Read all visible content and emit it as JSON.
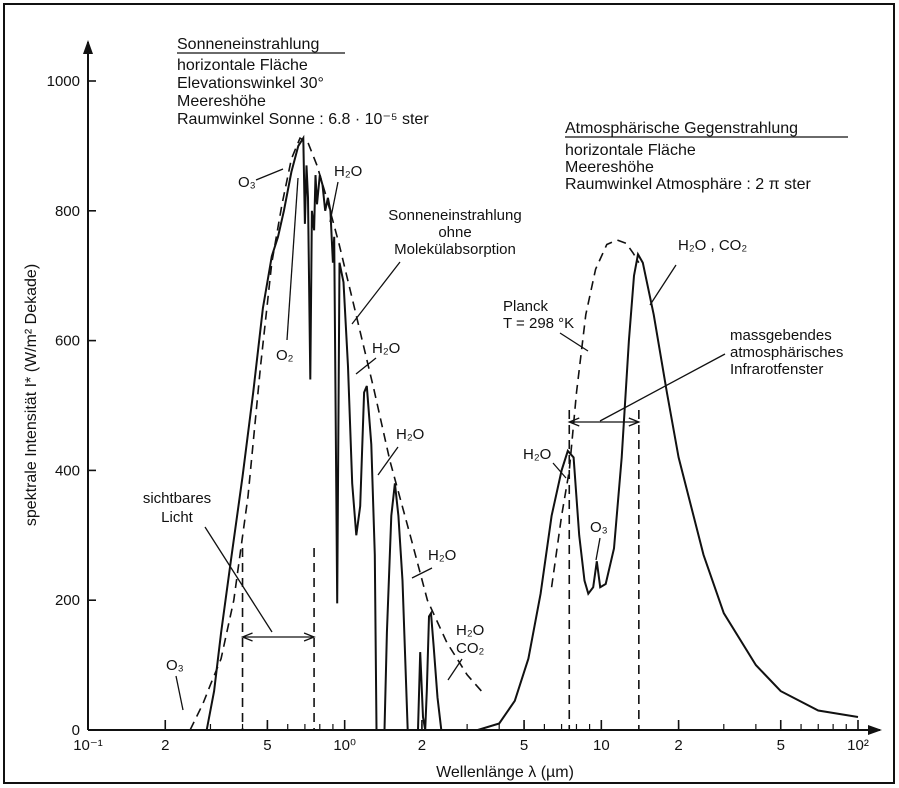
{
  "chart_data": {
    "type": "line",
    "x_scale": "log",
    "xlim": [
      0.1,
      100
    ],
    "ylim": [
      0,
      1000
    ],
    "xlabel": "Wellenlänge λ  (µm)",
    "ylabel": "spektrale Intensität  I* (W/m² Dekade)",
    "x_ticks": [
      {
        "x": 0.1,
        "label": "10⁻¹"
      },
      {
        "x": 0.2,
        "label": "2"
      },
      {
        "x": 0.5,
        "label": "5"
      },
      {
        "x": 1,
        "label": "10⁰"
      },
      {
        "x": 2,
        "label": "2"
      },
      {
        "x": 5,
        "label": "5"
      },
      {
        "x": 10,
        "label": "10"
      },
      {
        "x": 20,
        "label": "2"
      },
      {
        "x": 50,
        "label": "5"
      },
      {
        "x": 100,
        "label": "10²"
      }
    ],
    "y_ticks": [
      0,
      200,
      400,
      600,
      800,
      1000
    ],
    "series": [
      {
        "key": "solar_measured",
        "style": "solid",
        "points": [
          [
            0.29,
            0
          ],
          [
            0.31,
            60
          ],
          [
            0.33,
            150
          ],
          [
            0.36,
            260
          ],
          [
            0.4,
            390
          ],
          [
            0.44,
            520
          ],
          [
            0.48,
            650
          ],
          [
            0.52,
            730
          ],
          [
            0.55,
            760
          ],
          [
            0.58,
            800
          ],
          [
            0.62,
            860
          ],
          [
            0.66,
            900
          ],
          [
            0.69,
            912
          ],
          [
            0.7,
            780
          ],
          [
            0.71,
            870
          ],
          [
            0.72,
            820
          ],
          [
            0.735,
            540
          ],
          [
            0.745,
            800
          ],
          [
            0.76,
            770
          ],
          [
            0.77,
            855
          ],
          [
            0.78,
            810
          ],
          [
            0.8,
            855
          ],
          [
            0.82,
            840
          ],
          [
            0.84,
            800
          ],
          [
            0.86,
            820
          ],
          [
            0.88,
            800
          ],
          [
            0.9,
            720
          ],
          [
            0.91,
            760
          ],
          [
            0.935,
            195
          ],
          [
            0.955,
            720
          ],
          [
            0.99,
            690
          ],
          [
            1.03,
            560
          ],
          [
            1.07,
            380
          ],
          [
            1.11,
            300
          ],
          [
            1.15,
            345
          ],
          [
            1.19,
            520
          ],
          [
            1.22,
            530
          ],
          [
            1.27,
            440
          ],
          [
            1.31,
            270
          ],
          [
            1.33,
            0
          ],
          [
            1.43,
            0
          ],
          [
            1.46,
            150
          ],
          [
            1.52,
            330
          ],
          [
            1.57,
            380
          ],
          [
            1.62,
            330
          ],
          [
            1.68,
            230
          ],
          [
            1.76,
            0
          ],
          [
            1.93,
            0
          ],
          [
            1.97,
            120
          ],
          [
            2.02,
            20
          ],
          [
            2.06,
            0
          ],
          [
            2.09,
            60
          ],
          [
            2.13,
            175
          ],
          [
            2.17,
            180
          ],
          [
            2.22,
            130
          ],
          [
            2.3,
            50
          ],
          [
            2.38,
            0
          ],
          [
            2.5,
            0
          ],
          [
            3.3,
            0
          ]
        ]
      },
      {
        "key": "solar_no_absorption",
        "style": "dashed",
        "points": [
          [
            0.25,
            0
          ],
          [
            0.28,
            40
          ],
          [
            0.3,
            70
          ],
          [
            0.33,
            110
          ],
          [
            0.37,
            200
          ],
          [
            0.42,
            360
          ],
          [
            0.47,
            560
          ],
          [
            0.52,
            720
          ],
          [
            0.57,
            810
          ],
          [
            0.62,
            880
          ],
          [
            0.67,
            912
          ],
          [
            0.72,
            905
          ],
          [
            0.78,
            870
          ],
          [
            0.85,
            820
          ],
          [
            0.95,
            750
          ],
          [
            1.1,
            645
          ],
          [
            1.3,
            525
          ],
          [
            1.5,
            415
          ],
          [
            1.8,
            300
          ],
          [
            2.1,
            200
          ],
          [
            2.5,
            135
          ],
          [
            3.0,
            85
          ],
          [
            3.5,
            55
          ]
        ]
      },
      {
        "key": "planck_298K",
        "style": "dashed",
        "points": [
          [
            6.4,
            220
          ],
          [
            7.0,
            330
          ],
          [
            7.5,
            400
          ],
          [
            8.0,
            520
          ],
          [
            8.7,
            640
          ],
          [
            9.5,
            710
          ],
          [
            10.5,
            748
          ],
          [
            11.5,
            755
          ],
          [
            12.5,
            750
          ],
          [
            13.3,
            735
          ],
          [
            14.0,
            720
          ]
        ]
      },
      {
        "key": "atmospheric_measured",
        "style": "solid",
        "points": [
          [
            3.3,
            0
          ],
          [
            4.0,
            10
          ],
          [
            4.6,
            45
          ],
          [
            5.2,
            110
          ],
          [
            5.8,
            210
          ],
          [
            6.4,
            330
          ],
          [
            7.0,
            400
          ],
          [
            7.4,
            430
          ],
          [
            7.8,
            420
          ],
          [
            8.2,
            300
          ],
          [
            8.6,
            230
          ],
          [
            8.9,
            210
          ],
          [
            9.3,
            220
          ],
          [
            9.6,
            260
          ],
          [
            9.9,
            220
          ],
          [
            10.4,
            225
          ],
          [
            11.2,
            280
          ],
          [
            12.0,
            420
          ],
          [
            12.8,
            600
          ],
          [
            13.4,
            700
          ],
          [
            13.9,
            733
          ],
          [
            14.5,
            720
          ],
          [
            16,
            640
          ],
          [
            18,
            520
          ],
          [
            20,
            420
          ],
          [
            25,
            270
          ],
          [
            30,
            180
          ],
          [
            40,
            100
          ],
          [
            50,
            60
          ],
          [
            70,
            30
          ],
          [
            100,
            20
          ]
        ]
      }
    ],
    "annotations": {
      "solar_title": "Sonneneinstrahlung",
      "solar_lines": [
        "horizontale Fläche",
        "Elevationswinkel  30°",
        "Meereshöhe"
      ],
      "solar_solid_angle": "Raumwinkel  Sonne :  6.8 · 10⁻⁵ ster",
      "atm_title": "Atmosphärische  Gegenstrahlung",
      "atm_lines": [
        "horizontale  Fläche",
        "Meereshöhe"
      ],
      "atm_solid_angle": "Raumwinkel  Atmosphäre :  2 π ster",
      "no_absorption": [
        "Sonneneinstrahlung",
        "ohne",
        "Molekülabsorption"
      ],
      "visible_light": [
        "sichtbares",
        "Licht"
      ],
      "planck": [
        "Planck",
        "T = 298 °K"
      ],
      "window": [
        "massgebendes",
        "atmosphärisches",
        "Infrarotfenster"
      ],
      "labels": {
        "o3_top": "O₃",
        "o2": "O₂",
        "h2o_1": "H₂O",
        "h2o_2": "H₂O",
        "h2o_3": "H₂O",
        "h2o_4": "H₂O",
        "h2o_co2_1": "H₂O",
        "h2o_co2_2": "CO₂",
        "o3_bottom": "O₃",
        "h2o_atm": "H₂O",
        "o3_atm": "O₃",
        "h2o_co2_atm": "H₂O , CO₂"
      }
    },
    "visible_band": [
      0.4,
      0.76
    ],
    "window_band": [
      7.5,
      14
    ],
    "grid": false
  }
}
